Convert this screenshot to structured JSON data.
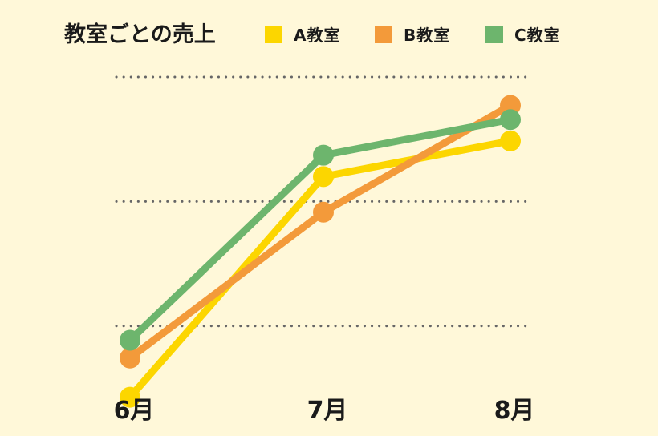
{
  "chart_data": {
    "type": "line",
    "title": "教室ごとの売上",
    "categories": [
      "6月",
      "7月",
      "8月"
    ],
    "series": [
      {
        "name": "A教室",
        "color": "#fcd600",
        "values": [
          10,
          72,
          82
        ]
      },
      {
        "name": "B教室",
        "color": "#f39a3a",
        "values": [
          21,
          62,
          92
        ]
      },
      {
        "name": "C教室",
        "color": "#6db56d",
        "values": [
          26,
          78,
          88
        ]
      }
    ],
    "ylim": [
      0,
      100
    ],
    "grid": true,
    "gridlines": [
      30,
      65,
      100
    ],
    "legend_position": "top",
    "xlabel": "",
    "ylabel": ""
  }
}
